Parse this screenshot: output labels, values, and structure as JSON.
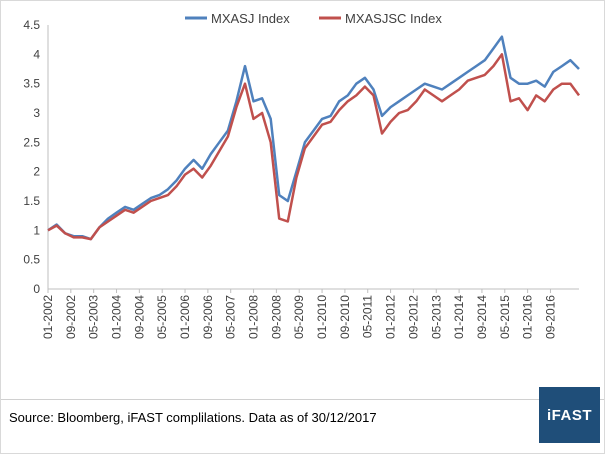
{
  "colors": {
    "mxasj": "#4f81bd",
    "mxasjsc": "#c0504d",
    "axis": "#bfbfbf",
    "logo_bg": "#1f4e79"
  },
  "source": "Source: Bloomberg, iFAST complilations. Data as of 30/12/2017",
  "logo": "iFAST",
  "chart_data": {
    "type": "line",
    "title": "",
    "xlabel": "",
    "ylabel": "",
    "legend_position": "top",
    "ylim": [
      0,
      4.5
    ],
    "yticks": [
      "0",
      "0.5",
      "1",
      "1.5",
      "2",
      "2.5",
      "3",
      "3.5",
      "4",
      "4.5"
    ],
    "grid": false,
    "x_tick_labels": [
      "01-2002",
      "09-2002",
      "05-2003",
      "01-2004",
      "09-2004",
      "05-2005",
      "01-2006",
      "09-2006",
      "05-2007",
      "01-2008",
      "09-2008",
      "05-2009",
      "01-2010",
      "09-2010",
      "05-2011",
      "01-2012",
      "09-2012",
      "05-2013",
      "01-2014",
      "09-2014",
      "05-2015",
      "01-2016",
      "09-2016"
    ],
    "x": [
      "2002-01",
      "2002-04",
      "2002-07",
      "2002-10",
      "2003-01",
      "2003-04",
      "2003-07",
      "2003-10",
      "2004-01",
      "2004-04",
      "2004-07",
      "2004-10",
      "2005-01",
      "2005-04",
      "2005-07",
      "2005-10",
      "2006-01",
      "2006-04",
      "2006-07",
      "2006-10",
      "2007-01",
      "2007-04",
      "2007-07",
      "2007-10",
      "2008-01",
      "2008-04",
      "2008-07",
      "2008-10",
      "2009-01",
      "2009-04",
      "2009-07",
      "2009-10",
      "2010-01",
      "2010-04",
      "2010-07",
      "2010-10",
      "2011-01",
      "2011-04",
      "2011-07",
      "2011-10",
      "2012-01",
      "2012-04",
      "2012-07",
      "2012-10",
      "2013-01",
      "2013-04",
      "2013-07",
      "2013-10",
      "2014-01",
      "2014-04",
      "2014-07",
      "2014-10",
      "2015-01",
      "2015-04",
      "2015-07",
      "2015-10",
      "2016-01",
      "2016-04",
      "2016-07",
      "2016-10",
      "2017-01",
      "2017-04",
      "2017-07"
    ],
    "series": [
      {
        "name": "MXASJ Index",
        "values": [
          1.0,
          1.1,
          0.95,
          0.9,
          0.9,
          0.85,
          1.05,
          1.2,
          1.3,
          1.4,
          1.35,
          1.45,
          1.55,
          1.6,
          1.7,
          1.85,
          2.05,
          2.2,
          2.05,
          2.3,
          2.5,
          2.7,
          3.2,
          3.8,
          3.2,
          3.25,
          2.9,
          1.6,
          1.5,
          2.0,
          2.5,
          2.7,
          2.9,
          2.95,
          3.2,
          3.3,
          3.5,
          3.6,
          3.4,
          2.95,
          3.1,
          3.2,
          3.3,
          3.4,
          3.5,
          3.45,
          3.4,
          3.5,
          3.6,
          3.7,
          3.8,
          3.9,
          4.1,
          4.3,
          3.6,
          3.5,
          3.5,
          3.55,
          3.45,
          3.7,
          3.8,
          3.9,
          3.75
        ]
      },
      {
        "name": "MXASJSC Index",
        "values": [
          1.0,
          1.08,
          0.95,
          0.88,
          0.88,
          0.85,
          1.05,
          1.15,
          1.25,
          1.35,
          1.3,
          1.4,
          1.5,
          1.55,
          1.6,
          1.75,
          1.95,
          2.05,
          1.9,
          2.1,
          2.35,
          2.6,
          3.1,
          3.5,
          2.9,
          3.0,
          2.5,
          1.2,
          1.15,
          1.9,
          2.4,
          2.6,
          2.8,
          2.85,
          3.05,
          3.2,
          3.3,
          3.45,
          3.3,
          2.65,
          2.85,
          3.0,
          3.05,
          3.2,
          3.4,
          3.3,
          3.2,
          3.3,
          3.4,
          3.55,
          3.6,
          3.65,
          3.8,
          4.0,
          3.2,
          3.25,
          3.05,
          3.3,
          3.2,
          3.4,
          3.5,
          3.5,
          3.3
        ]
      }
    ]
  }
}
